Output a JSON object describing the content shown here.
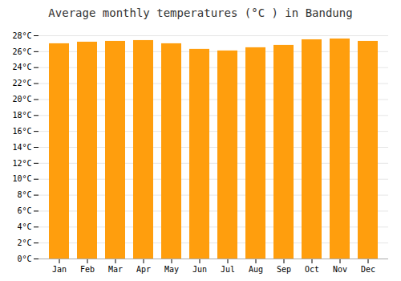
{
  "chart_data": {
    "type": "bar",
    "title": "Average monthly temperatures (°C ) in Bandung",
    "categories": [
      "Jan",
      "Feb",
      "Mar",
      "Apr",
      "May",
      "Jun",
      "Jul",
      "Aug",
      "Sep",
      "Oct",
      "Nov",
      "Dec"
    ],
    "values": [
      27.0,
      27.2,
      27.3,
      27.4,
      27.0,
      26.3,
      26.1,
      26.5,
      26.8,
      27.5,
      27.6,
      27.3
    ],
    "color": "#FF9E0D",
    "ylim": [
      0,
      28
    ],
    "yticks": [
      {
        "value": 0,
        "label": "0°C"
      },
      {
        "value": 2,
        "label": "2°C"
      },
      {
        "value": 4,
        "label": "4°C"
      },
      {
        "value": 6,
        "label": "6°C"
      },
      {
        "value": 8,
        "label": "8°C"
      },
      {
        "value": 10,
        "label": "10°C"
      },
      {
        "value": 12,
        "label": "12°C"
      },
      {
        "value": 14,
        "label": "14°C"
      },
      {
        "value": 16,
        "label": "16°C"
      },
      {
        "value": 18,
        "label": "18°C"
      },
      {
        "value": 20,
        "label": "20°C"
      },
      {
        "value": 22,
        "label": "22°C"
      },
      {
        "value": 24,
        "label": "24°C"
      },
      {
        "value": 26,
        "label": "26°C"
      },
      {
        "value": 28,
        "label": "28°C"
      }
    ],
    "grid": true
  }
}
